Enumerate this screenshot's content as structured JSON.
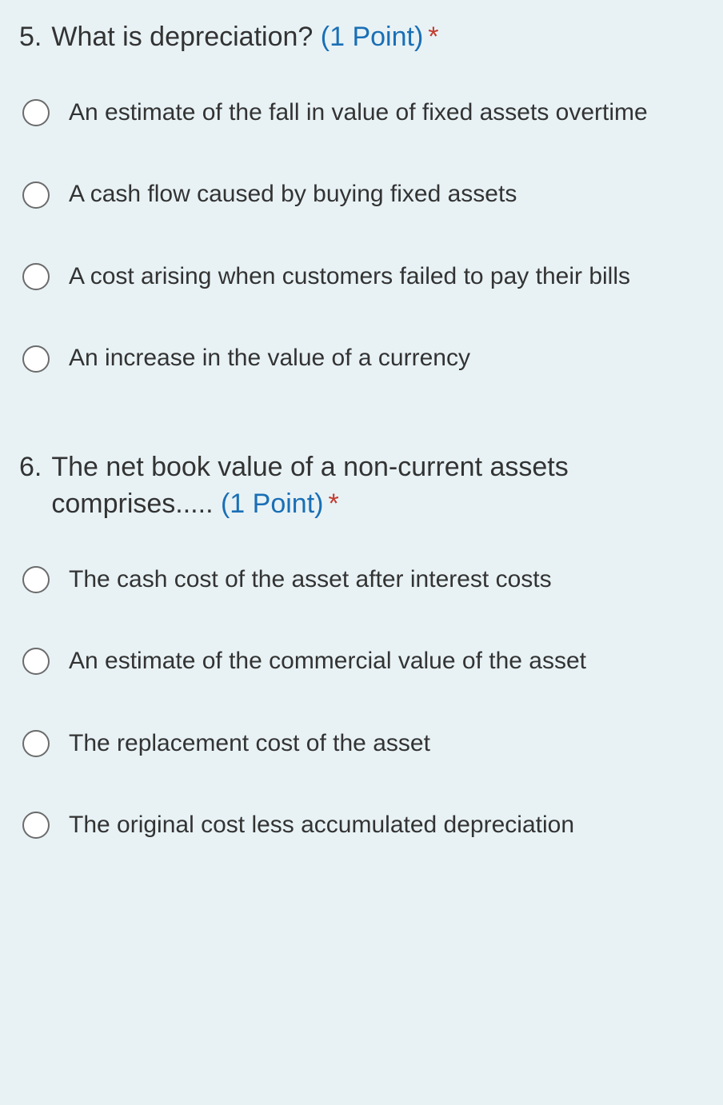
{
  "colors": {
    "background": "#e8f2f5",
    "text": "#333333",
    "points": "#1a6fb5",
    "required": "#c43a2f",
    "radio_border": "#6b6b6b",
    "radio_fill": "#ffffff"
  },
  "typography": {
    "question_fontsize": 34,
    "option_fontsize": 30,
    "font_family": "Segoe UI"
  },
  "questions": [
    {
      "number": "5.",
      "text": "What is depreciation? ",
      "points": "(1 Point)",
      "required": "*",
      "options": [
        {
          "label": "An estimate of the fall in value of fixed assets overtime",
          "selected": false
        },
        {
          "label": "A cash flow caused by buying fixed assets",
          "selected": false
        },
        {
          "label": "A cost arising when customers failed to pay their bills",
          "selected": false
        },
        {
          "label": "An increase in the value of a currency",
          "selected": false
        }
      ]
    },
    {
      "number": "6.",
      "text": "The net book value of a non-current assets comprises..... ",
      "points": "(1 Point)",
      "required": "*",
      "options": [
        {
          "label": "The cash cost of the asset after interest costs",
          "selected": false
        },
        {
          "label": "An estimate of the commercial value of the asset",
          "selected": false
        },
        {
          "label": "The replacement cost of the asset",
          "selected": false
        },
        {
          "label": "The original cost less accumulated depreciation",
          "selected": false
        }
      ]
    }
  ]
}
